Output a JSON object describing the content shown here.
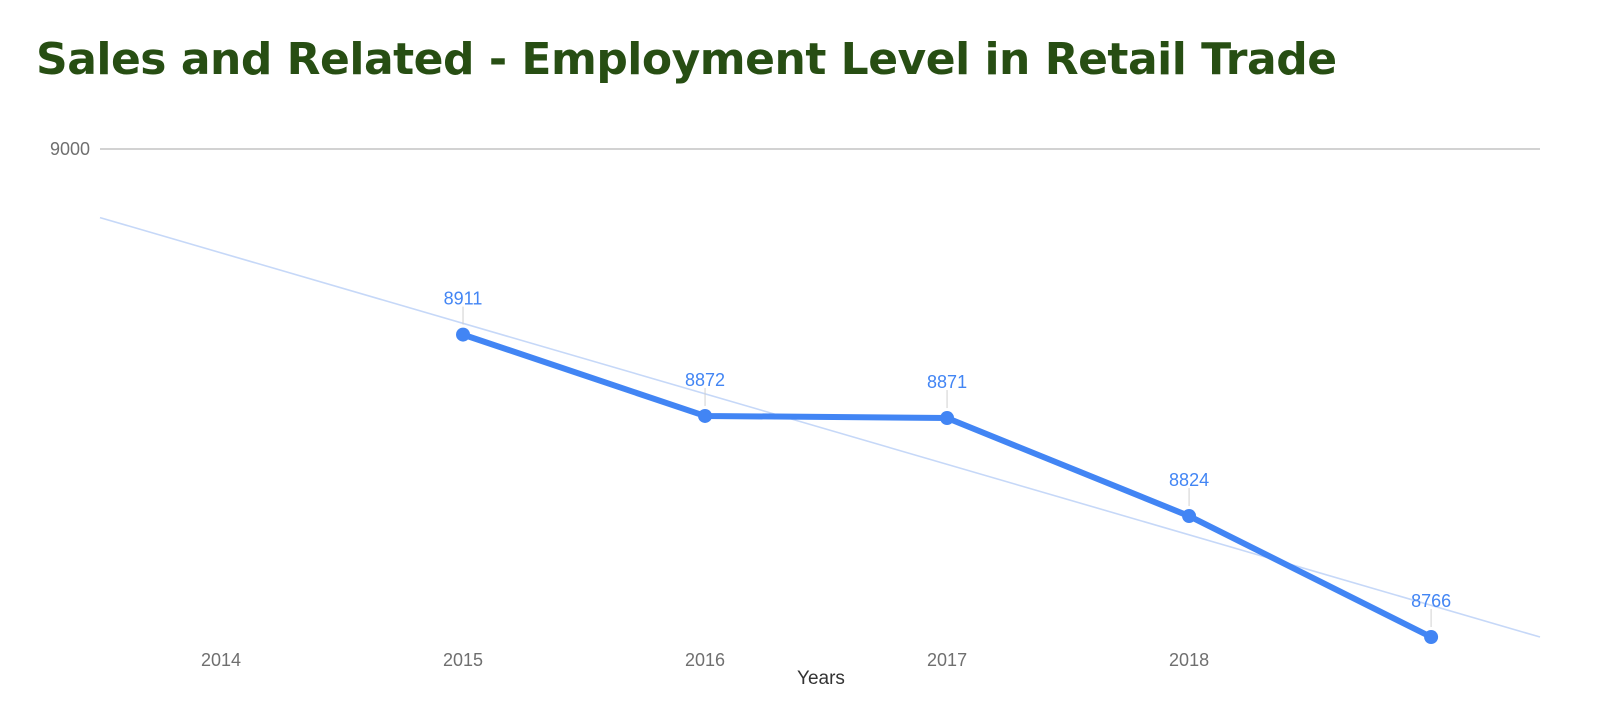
{
  "chart_data": {
    "type": "line",
    "title": "Sales and Related - Employment Level in Retail Trade",
    "xlabel": "Years",
    "ylabel": "",
    "x_ticks": [
      "2014",
      "2015",
      "2016",
      "2017",
      "2018"
    ],
    "y_ticks": [
      9000
    ],
    "ylim": [
      8766,
      9000
    ],
    "xlim": [
      2013.5,
      2019.45
    ],
    "grid": true,
    "legend": "none",
    "series": [
      {
        "x": [
          2015,
          2016,
          2017,
          2018,
          2019
        ],
        "values": [
          8911,
          8872,
          8871,
          8824,
          8766
        ],
        "labels": [
          "8911",
          "8872",
          "8871",
          "8824",
          "8766"
        ],
        "color": "#4285f4"
      }
    ],
    "trendline": {
      "type": "linear",
      "color": "#c6d8f8"
    }
  }
}
